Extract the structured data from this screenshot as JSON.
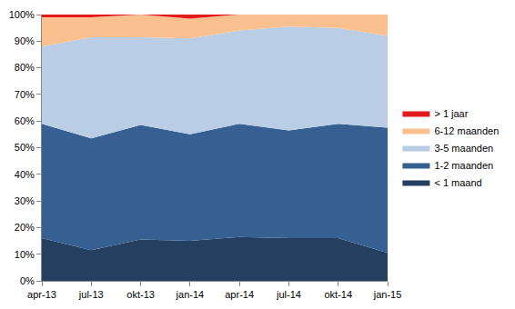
{
  "chart_data": {
    "type": "area",
    "stacked": true,
    "grid": false,
    "legend": "right",
    "categories": [
      "apr-13",
      "jul-13",
      "okt-13",
      "jan-14",
      "apr-14",
      "jul-14",
      "okt-14",
      "jan-15"
    ],
    "series": [
      {
        "name": "< 1 maand",
        "color": "#243f60",
        "values": [
          16,
          11.5,
          15.5,
          15,
          16.5,
          16,
          16,
          10.5
        ]
      },
      {
        "name": "1-2 maanden",
        "color": "#366092",
        "values": [
          43,
          42,
          43,
          40,
          42.5,
          40.5,
          43,
          47
        ]
      },
      {
        "name": "3-5 maanden",
        "color": "#b9cde5",
        "values": [
          29,
          38,
          33,
          36,
          35,
          39,
          36,
          34.5
        ]
      },
      {
        "name": "6-12 maanden",
        "color": "#fac090",
        "values": [
          11,
          7.5,
          8.5,
          7.5,
          6,
          4.5,
          5,
          8
        ]
      },
      {
        "name": "> 1 jaar",
        "color": "#e31a1c",
        "values": [
          1,
          1,
          0,
          1.5,
          0,
          0,
          0,
          0
        ]
      }
    ],
    "ylim": [
      0,
      100
    ],
    "yticks": [
      {
        "value": 0,
        "label": "0%"
      },
      {
        "value": 10,
        "label": "10%"
      },
      {
        "value": 20,
        "label": "20%"
      },
      {
        "value": 30,
        "label": "30%"
      },
      {
        "value": 40,
        "label": "40%"
      },
      {
        "value": 50,
        "label": "50%"
      },
      {
        "value": 60,
        "label": "60%"
      },
      {
        "value": 70,
        "label": "70%"
      },
      {
        "value": 80,
        "label": "80%"
      },
      {
        "value": 90,
        "label": "90%"
      },
      {
        "value": 100,
        "label": "100%"
      }
    ]
  }
}
